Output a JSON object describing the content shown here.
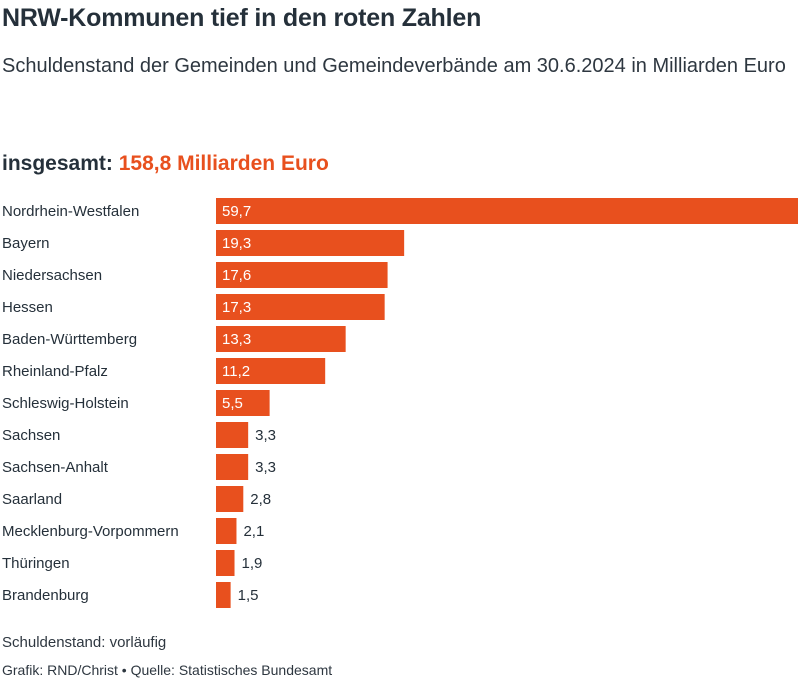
{
  "header": {
    "title": "NRW-Kommunen tief in den roten Zahlen",
    "subtitle": "Schuldenstand der Gemeinden und Gemeindeverbände am 30.6.2024 in Milliarden Euro",
    "total_label": "insgesamt:",
    "total_value": "158,8 Milliarden Euro"
  },
  "chart_data": {
    "type": "bar",
    "orientation": "horizontal",
    "categories": [
      "Nordrhein-Westfalen",
      "Bayern",
      "Niedersachsen",
      "Hessen",
      "Baden-Württemberg",
      "Rheinland-Pfalz",
      "Schleswig-Holstein",
      "Sachsen",
      "Sachsen-Anhalt",
      "Saarland",
      "Mecklenburg-Vorpommern",
      "Thüringen",
      "Brandenburg"
    ],
    "values": [
      59.7,
      19.3,
      17.6,
      17.3,
      13.3,
      11.2,
      5.5,
      3.3,
      3.3,
      2.8,
      2.1,
      1.9,
      1.5
    ],
    "value_labels": [
      "59,7",
      "19,3",
      "17,6",
      "17,3",
      "13,3",
      "11,2",
      "5,5",
      "3,3",
      "3,3",
      "2,8",
      "2,1",
      "1,9",
      "1,5"
    ],
    "xlim": [
      0,
      59.7
    ],
    "grid": false,
    "bar_color": "#e8501e"
  },
  "footer": {
    "note": "Schuldenstand: vorläufig",
    "credit": "Grafik: RND/Christ • Quelle: Statistisches Bundesamt"
  },
  "colors": {
    "accent": "#e8501e",
    "text": "#25303a"
  }
}
